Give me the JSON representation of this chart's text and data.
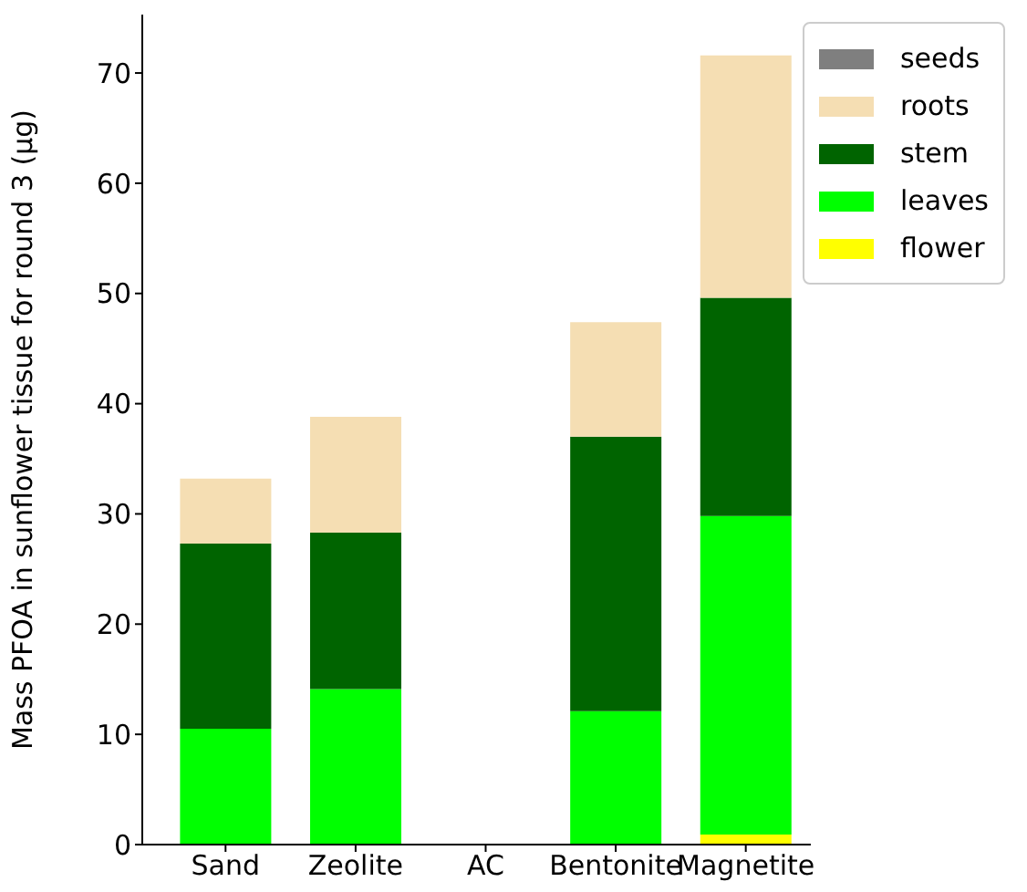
{
  "chart_data": {
    "type": "bar",
    "stacked": true,
    "ylabel": "Mass PFOA in sunflower tissue for round 3 (µg)",
    "categories": [
      "Sand",
      "Zeolite",
      "AC",
      "Bentonite",
      "Magnetite"
    ],
    "series": [
      {
        "name": "flower",
        "color": "#ffff00",
        "values": [
          0,
          0,
          0,
          0,
          0.9
        ]
      },
      {
        "name": "leaves",
        "color": "#00ff00",
        "values": [
          10.5,
          14.1,
          0,
          12.1,
          28.9
        ]
      },
      {
        "name": "stem",
        "color": "#006400",
        "values": [
          16.8,
          14.2,
          0,
          24.9,
          19.8
        ]
      },
      {
        "name": "roots",
        "color": "#f5deb3",
        "values": [
          5.9,
          10.5,
          0,
          10.4,
          22.0
        ]
      },
      {
        "name": "seeds",
        "color": "#7f7f7f",
        "values": [
          0,
          0,
          0,
          0,
          0
        ]
      }
    ],
    "ylim": [
      0,
      75.3
    ],
    "yticks": [
      0,
      10,
      20,
      30,
      40,
      50,
      60,
      70
    ],
    "legend": "top right",
    "grid": false
  }
}
